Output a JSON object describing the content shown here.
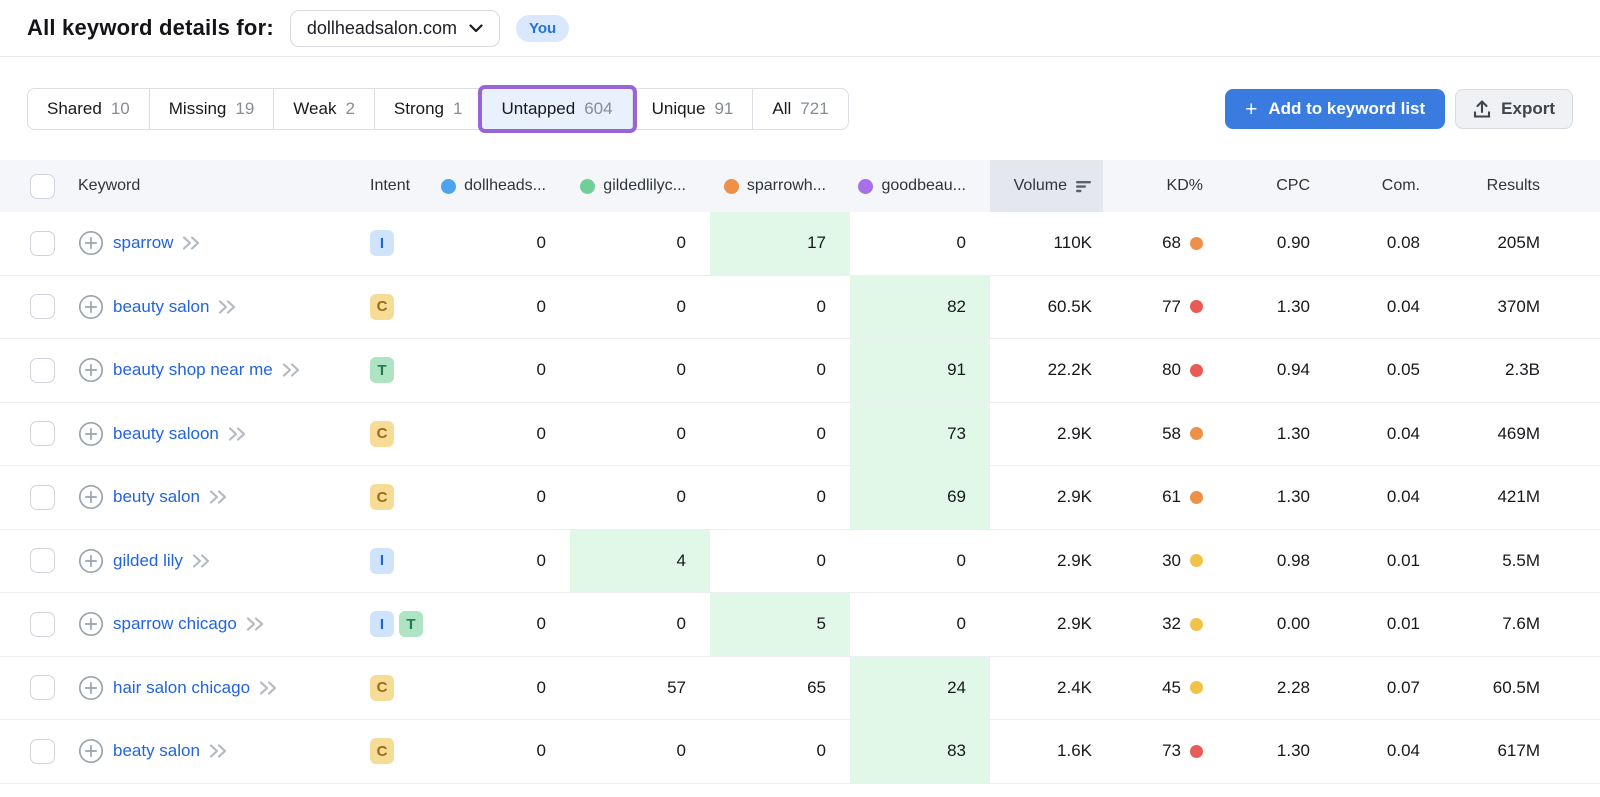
{
  "header": {
    "title": "All keyword details for:",
    "domain": "dollheadsalon.com",
    "you_badge": "You"
  },
  "tabs": [
    {
      "label": "Shared",
      "count": "10",
      "active": false
    },
    {
      "label": "Missing",
      "count": "19",
      "active": false
    },
    {
      "label": "Weak",
      "count": "2",
      "active": false
    },
    {
      "label": "Strong",
      "count": "1",
      "active": false
    },
    {
      "label": "Untapped",
      "count": "604",
      "active": true
    },
    {
      "label": "Unique",
      "count": "91",
      "active": false
    },
    {
      "label": "All",
      "count": "721",
      "active": false
    }
  ],
  "actions": {
    "add_to_list": "Add to keyword list",
    "export": "Export"
  },
  "colors": {
    "kd": {
      "orange": "#EF9048",
      "red": "#E95C55",
      "yellow": "#F0C24A"
    },
    "highlight": "#E1F8E8",
    "accent_purple": "#9765D8",
    "primary_blue": "#3A7BE0"
  },
  "table": {
    "headers": {
      "keyword": "Keyword",
      "intent": "Intent",
      "volume": "Volume",
      "kd": "KD%",
      "cpc": "CPC",
      "com": "Com.",
      "results": "Results"
    },
    "competitors": [
      {
        "label": "dollheads...",
        "color": "#4DA3ED"
      },
      {
        "label": "gildedlilyc...",
        "color": "#6FCF97"
      },
      {
        "label": "sparrowh...",
        "color": "#EF9048"
      },
      {
        "label": "goodbeau...",
        "color": "#A86FE8"
      }
    ],
    "rows": [
      {
        "keyword": "sparrow",
        "intents": [
          "I"
        ],
        "positions": [
          {
            "value": "0",
            "highlight": false
          },
          {
            "value": "0",
            "highlight": false
          },
          {
            "value": "17",
            "highlight": true
          },
          {
            "value": "0",
            "highlight": false
          }
        ],
        "volume": "110K",
        "kd": {
          "value": "68",
          "level": "orange"
        },
        "cpc": "0.90",
        "com": "0.08",
        "results": "205M"
      },
      {
        "keyword": "beauty salon",
        "intents": [
          "C"
        ],
        "positions": [
          {
            "value": "0",
            "highlight": false
          },
          {
            "value": "0",
            "highlight": false
          },
          {
            "value": "0",
            "highlight": false
          },
          {
            "value": "82",
            "highlight": true
          }
        ],
        "volume": "60.5K",
        "kd": {
          "value": "77",
          "level": "red"
        },
        "cpc": "1.30",
        "com": "0.04",
        "results": "370M"
      },
      {
        "keyword": "beauty shop near me",
        "intents": [
          "T"
        ],
        "positions": [
          {
            "value": "0",
            "highlight": false
          },
          {
            "value": "0",
            "highlight": false
          },
          {
            "value": "0",
            "highlight": false
          },
          {
            "value": "91",
            "highlight": true
          }
        ],
        "volume": "22.2K",
        "kd": {
          "value": "80",
          "level": "red"
        },
        "cpc": "0.94",
        "com": "0.05",
        "results": "2.3B"
      },
      {
        "keyword": "beauty saloon",
        "intents": [
          "C"
        ],
        "positions": [
          {
            "value": "0",
            "highlight": false
          },
          {
            "value": "0",
            "highlight": false
          },
          {
            "value": "0",
            "highlight": false
          },
          {
            "value": "73",
            "highlight": true
          }
        ],
        "volume": "2.9K",
        "kd": {
          "value": "58",
          "level": "orange"
        },
        "cpc": "1.30",
        "com": "0.04",
        "results": "469M"
      },
      {
        "keyword": "beuty salon",
        "intents": [
          "C"
        ],
        "positions": [
          {
            "value": "0",
            "highlight": false
          },
          {
            "value": "0",
            "highlight": false
          },
          {
            "value": "0",
            "highlight": false
          },
          {
            "value": "69",
            "highlight": true
          }
        ],
        "volume": "2.9K",
        "kd": {
          "value": "61",
          "level": "orange"
        },
        "cpc": "1.30",
        "com": "0.04",
        "results": "421M"
      },
      {
        "keyword": "gilded lily",
        "intents": [
          "I"
        ],
        "positions": [
          {
            "value": "0",
            "highlight": false
          },
          {
            "value": "4",
            "highlight": true
          },
          {
            "value": "0",
            "highlight": false
          },
          {
            "value": "0",
            "highlight": false
          }
        ],
        "volume": "2.9K",
        "kd": {
          "value": "30",
          "level": "yellow"
        },
        "cpc": "0.98",
        "com": "0.01",
        "results": "5.5M"
      },
      {
        "keyword": "sparrow chicago",
        "intents": [
          "I",
          "T"
        ],
        "positions": [
          {
            "value": "0",
            "highlight": false
          },
          {
            "value": "0",
            "highlight": false
          },
          {
            "value": "5",
            "highlight": true
          },
          {
            "value": "0",
            "highlight": false
          }
        ],
        "volume": "2.9K",
        "kd": {
          "value": "32",
          "level": "yellow"
        },
        "cpc": "0.00",
        "com": "0.01",
        "results": "7.6M"
      },
      {
        "keyword": "hair salon chicago",
        "intents": [
          "C"
        ],
        "positions": [
          {
            "value": "0",
            "highlight": false
          },
          {
            "value": "57",
            "highlight": false
          },
          {
            "value": "65",
            "highlight": false
          },
          {
            "value": "24",
            "highlight": true
          }
        ],
        "volume": "2.4K",
        "kd": {
          "value": "45",
          "level": "yellow"
        },
        "cpc": "2.28",
        "com": "0.07",
        "results": "60.5M"
      },
      {
        "keyword": "beaty salon",
        "intents": [
          "C"
        ],
        "positions": [
          {
            "value": "0",
            "highlight": false
          },
          {
            "value": "0",
            "highlight": false
          },
          {
            "value": "0",
            "highlight": false
          },
          {
            "value": "83",
            "highlight": true
          }
        ],
        "volume": "1.6K",
        "kd": {
          "value": "73",
          "level": "red"
        },
        "cpc": "1.30",
        "com": "0.04",
        "results": "617M"
      }
    ]
  }
}
